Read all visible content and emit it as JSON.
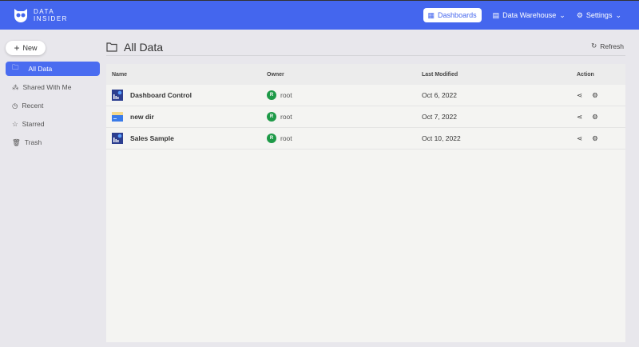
{
  "brand": {
    "line1": "DATA",
    "line2": "INSIDER"
  },
  "nav": [
    {
      "label": "Dashboards",
      "icon": "dashboard-icon",
      "active": true
    },
    {
      "label": "Data Warehouse",
      "icon": "database-icon"
    },
    {
      "label": "Settings",
      "icon": "gear-icon"
    }
  ],
  "sidebar": {
    "new_label": "New",
    "items": [
      {
        "label": "All Data",
        "icon": "folder-icon"
      },
      {
        "label": "Shared With Me",
        "icon": "share-nodes-icon"
      },
      {
        "label": "Recent",
        "icon": "clock-icon"
      },
      {
        "label": "Starred",
        "icon": "star-icon"
      },
      {
        "label": "Trash",
        "icon": "trash-icon"
      }
    ]
  },
  "main": {
    "title": "All Data",
    "refresh_label": "Refresh",
    "columns": [
      "Name",
      "Owner",
      "Last Modified",
      "Action"
    ],
    "rows": [
      {
        "name": "Dashboard Control",
        "type": "dashboard",
        "owner_initial": "R",
        "owner": "root",
        "modified": "Oct 6, 2022"
      },
      {
        "name": "new dir",
        "type": "folder",
        "owner_initial": "R",
        "owner": "root",
        "modified": "Oct 7, 2022"
      },
      {
        "name": "Sales Sample",
        "type": "dashboard",
        "owner_initial": "R",
        "owner": "root",
        "modified": "Oct 10, 2022"
      }
    ]
  },
  "colors": {
    "accent": "#4466ee",
    "avatar": "#1e9a48"
  }
}
